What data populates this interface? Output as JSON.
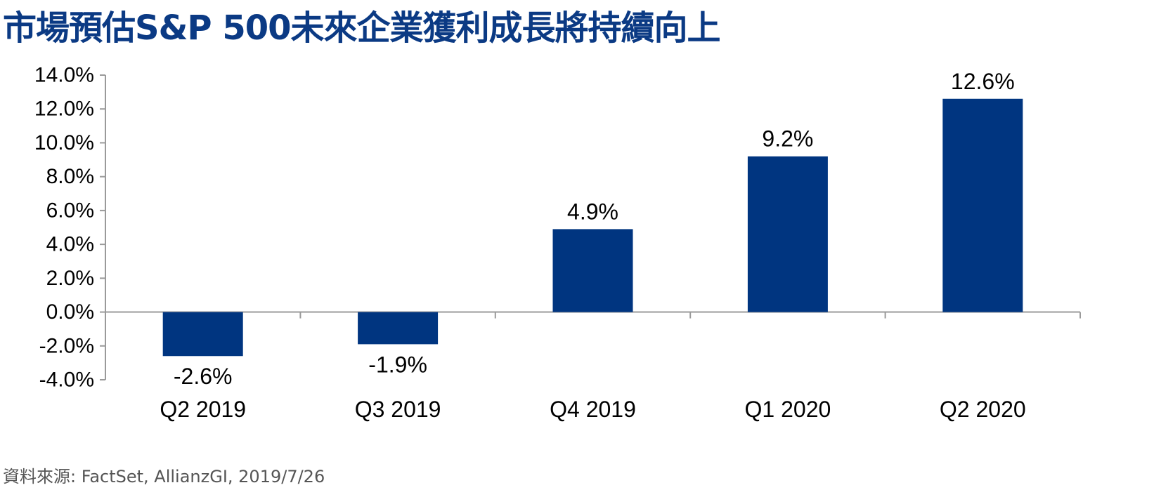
{
  "title": "市場預估S&P 500未來企業獲利成長將持續向上",
  "source": "資料來源: FactSet, AllianzGI, 2019/7/26",
  "colors": {
    "title": "#0B3A84",
    "bar": "#003580",
    "axis": "#9A9A9A",
    "text": "#000000",
    "source": "#555555"
  },
  "chart_data": {
    "type": "bar",
    "categories": [
      "Q2 2019",
      "Q3 2019",
      "Q4 2019",
      "Q1 2020",
      "Q2 2020"
    ],
    "values": [
      -2.6,
      -1.9,
      4.9,
      9.2,
      12.6
    ],
    "value_labels": [
      "-2.6%",
      "-1.9%",
      "4.9%",
      "9.2%",
      "12.6%"
    ],
    "ylim": [
      -4.0,
      14.0
    ],
    "y_ticks": [
      14.0,
      12.0,
      10.0,
      8.0,
      6.0,
      4.0,
      2.0,
      0.0,
      -2.0,
      -4.0
    ],
    "y_tick_labels": [
      "14.0%",
      "12.0%",
      "10.0%",
      "8.0%",
      "6.0%",
      "4.0%",
      "2.0%",
      "0.0%",
      "-2.0%",
      "-4.0%"
    ],
    "title": "市場預估S&P 500未來企業獲利成長將持續向上",
    "xlabel": "",
    "ylabel": "",
    "grid": false,
    "legend": "none"
  }
}
